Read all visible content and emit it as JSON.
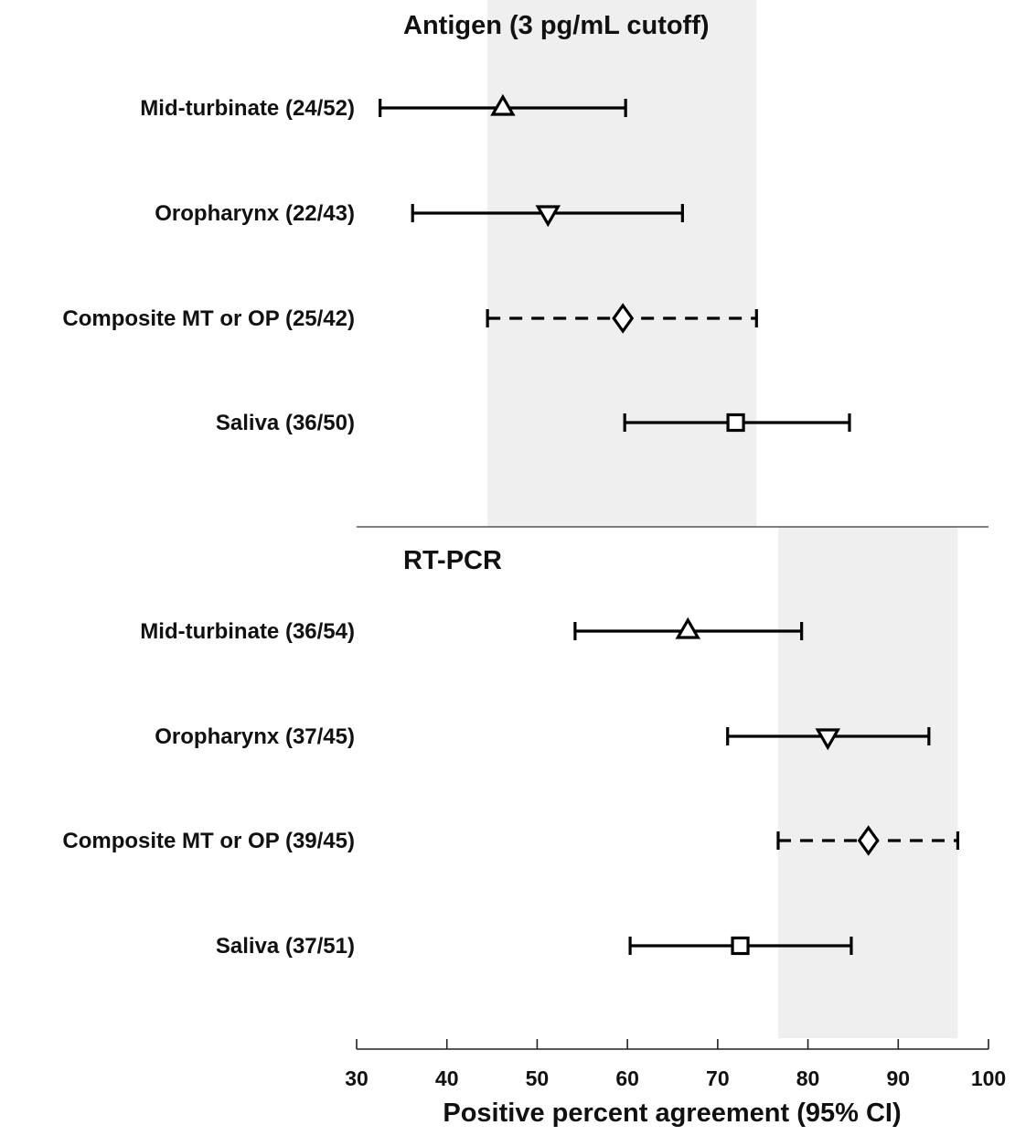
{
  "chart_data": {
    "type": "forest",
    "xlabel": "Positive percent agreement (95% CI)",
    "xlim": [
      30,
      100
    ],
    "xticks": [
      30,
      40,
      50,
      60,
      70,
      80,
      90,
      100
    ],
    "colors": {
      "shade": "#efefef",
      "line": "#000000",
      "divider": "#555555"
    },
    "panels": [
      {
        "title": "Antigen (3 pg/mL cutoff)",
        "shade_range": [
          44.5,
          74.3
        ],
        "rows": [
          {
            "label": "Mid-turbinate (24/52)",
            "estimate": 46.2,
            "ci_low": 32.6,
            "ci_high": 59.8,
            "marker": "triangle-up",
            "line_style": "solid"
          },
          {
            "label": "Oropharynx (22/43)",
            "estimate": 51.2,
            "ci_low": 36.2,
            "ci_high": 66.1,
            "marker": "triangle-down",
            "line_style": "solid"
          },
          {
            "label": "Composite MT or OP (25/42)",
            "estimate": 59.5,
            "ci_low": 44.5,
            "ci_high": 74.3,
            "marker": "diamond",
            "line_style": "dashed"
          },
          {
            "label": "Saliva (36/50)",
            "estimate": 72.0,
            "ci_low": 59.7,
            "ci_high": 84.6,
            "marker": "square",
            "line_style": "solid"
          }
        ]
      },
      {
        "title": "RT-PCR",
        "shade_range": [
          76.7,
          96.6
        ],
        "rows": [
          {
            "label": "Mid-turbinate (36/54)",
            "estimate": 66.7,
            "ci_low": 54.2,
            "ci_high": 79.3,
            "marker": "triangle-up",
            "line_style": "solid"
          },
          {
            "label": "Oropharynx (37/45)",
            "estimate": 82.2,
            "ci_low": 71.1,
            "ci_high": 93.4,
            "marker": "triangle-down",
            "line_style": "solid"
          },
          {
            "label": "Composite MT or OP (39/45)",
            "estimate": 86.7,
            "ci_low": 76.7,
            "ci_high": 96.6,
            "marker": "diamond",
            "line_style": "dashed"
          },
          {
            "label": "Saliva (37/51)",
            "estimate": 72.5,
            "ci_low": 60.3,
            "ci_high": 84.8,
            "marker": "square",
            "line_style": "solid"
          }
        ]
      }
    ]
  }
}
